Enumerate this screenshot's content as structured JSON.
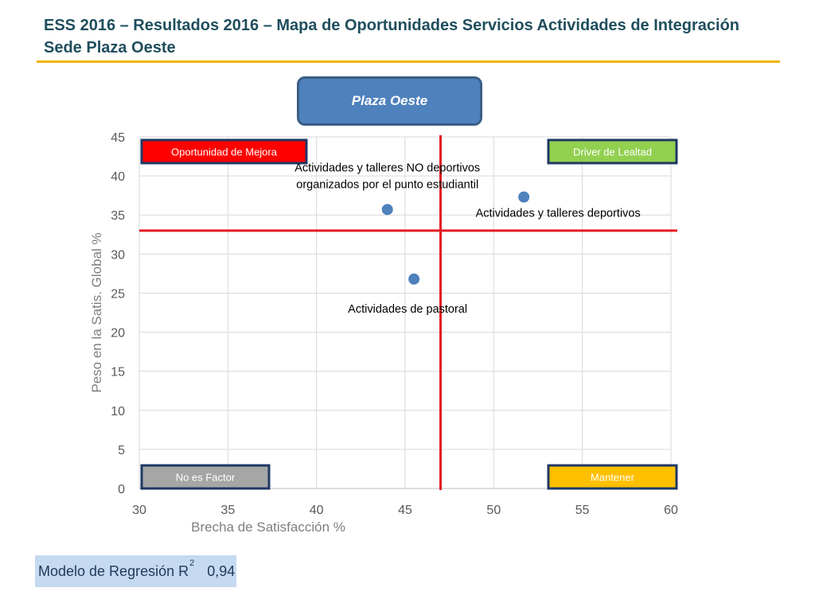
{
  "header": {
    "title_line1": "ESS 2016 – Resultados 2016 – Mapa de Oportunidades Servicios Actividades de Integración",
    "title_line2": "Sede Plaza Oeste"
  },
  "site_button": {
    "label": "Plaza Oeste"
  },
  "regression": {
    "label": "Modelo de Regresión R",
    "superscript": "2",
    "value": "0,94"
  },
  "colors": {
    "point": "#4f81bd",
    "divider": "#e31b23",
    "oportunidad": "#ff0000",
    "driver": "#92d050",
    "no_factor": "#a6a6a6",
    "mantener": "#ffc000",
    "quadrant_border": "#1f3864"
  },
  "chart_data": {
    "type": "scatter",
    "xlabel": "Brecha de Satisfacción %",
    "ylabel": "Peso en la Satis. Global %",
    "xlim": [
      30,
      60
    ],
    "ylim": [
      0,
      45
    ],
    "x_ticks": [
      30,
      35,
      40,
      45,
      50,
      55,
      60
    ],
    "y_ticks": [
      0,
      5,
      10,
      15,
      20,
      25,
      30,
      35,
      40,
      45
    ],
    "grid": true,
    "x_divider": 47.0,
    "y_divider": 33.0,
    "points": [
      {
        "x": 44.0,
        "y": 35.7,
        "label_lines": [
          "Actividades y talleres NO deportivos",
          "organizados por el punto estudiantil"
        ]
      },
      {
        "x": 51.7,
        "y": 37.3,
        "label_lines": [
          "Actividades y talleres deportivos"
        ]
      },
      {
        "x": 45.5,
        "y": 26.8,
        "label_lines": [
          "Actividades de pastoral"
        ]
      }
    ],
    "quadrants": {
      "top_left": "Oportunidad de Mejora",
      "top_right": "Driver de Lealtad",
      "bottom_left": "No es Factor",
      "bottom_right": "Mantener"
    }
  }
}
